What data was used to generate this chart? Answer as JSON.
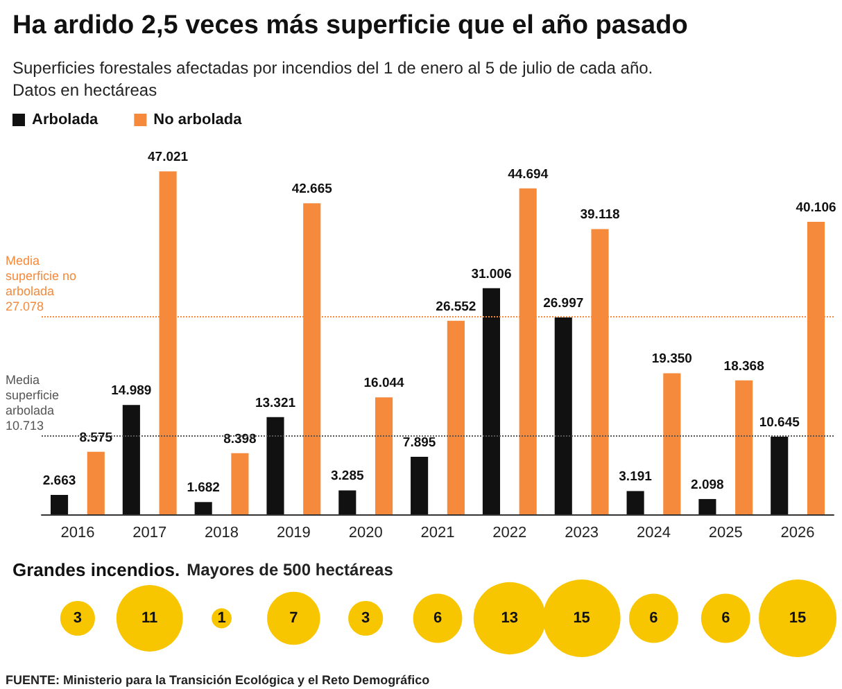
{
  "chart_data": [
    {
      "type": "bar",
      "title": "Ha ardido 2,5 veces más superficie que el año pasado",
      "subtitle": "Superficies forestales afectadas por incendios del 1 de enero al 5 de julio de cada año.\nDatos en hectáreas",
      "categories": [
        "2016",
        "2017",
        "2018",
        "2019",
        "2020",
        "2021",
        "2022",
        "2023",
        "2024",
        "2025",
        "2026"
      ],
      "series": [
        {
          "name": "Arbolada",
          "color": "#111111",
          "values": [
            2663,
            14989,
            1682,
            13321,
            3285,
            7895,
            31006,
            26997,
            3191,
            2098,
            10645
          ],
          "value_labels": [
            "2.663",
            "14.989",
            "1.682",
            "13.321",
            "3.285",
            "7.895",
            "31.006",
            "26.997",
            "3.191",
            "2.098",
            "10.645"
          ]
        },
        {
          "name": "No arbolada",
          "color": "#f58a3c",
          "values": [
            8575,
            47021,
            8398,
            42665,
            16044,
            26552,
            44694,
            39118,
            19350,
            18368,
            40106
          ],
          "value_labels": [
            "8.575",
            "47.021",
            "8.398",
            "42.665",
            "16.044",
            "26.552",
            "44.694",
            "39.118",
            "19.350",
            "18.368",
            "40.106"
          ]
        }
      ],
      "ref_lines": [
        {
          "axis": "y",
          "value": 27078,
          "label": "Media superficie no arbolada 27.078",
          "color": "#f58a3c",
          "line_style": "dotted"
        },
        {
          "axis": "y",
          "value": 10713,
          "label": "Media superficie arbolada 10.713",
          "color": "#555555",
          "line_style": "dotted"
        }
      ],
      "tick_labels": "x",
      "grid": false,
      "legend": "top left"
    },
    {
      "type": "other",
      "title": "Grandes incendios.",
      "subtitle": "Mayores de 500 hectáreas",
      "categories": [
        null,
        null,
        null,
        null,
        null,
        null,
        null,
        null,
        null,
        null,
        null
      ],
      "series": [
        {
          "color": "#f7c600",
          "values": [
            3,
            11,
            1,
            7,
            3,
            6,
            13,
            15,
            6,
            6,
            15
          ]
        }
      ],
      "data_labels": true,
      "annotations": [
        "FUENTE: Ministerio para la Transición Ecológica y el Reto Demográfico"
      ]
    }
  ]
}
